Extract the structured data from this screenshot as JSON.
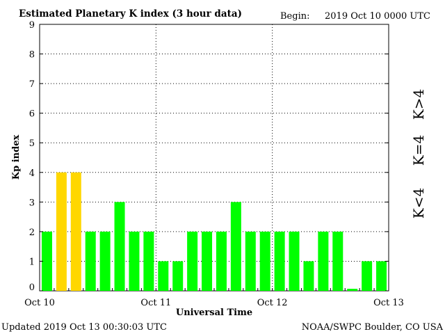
{
  "header": {
    "title": "Estimated Planetary K index (3 hour data)",
    "begin_label": "Begin:",
    "begin_value": "2019 Oct 10 0000 UTC"
  },
  "footer": {
    "updated": "Updated 2019 Oct 13 00:30:03 UTC",
    "source": "NOAA/SWPC Boulder, CO USA"
  },
  "legend": {
    "high": "K>4",
    "equal": "K=4",
    "low": "K<4"
  },
  "colors": {
    "low": "#00ff00",
    "equal": "#ffd700",
    "high": "#ff2a00"
  },
  "chart_data": {
    "type": "bar",
    "ylabel": "Kp index",
    "xlabel": "Universal Time",
    "ylim": [
      0,
      9
    ],
    "yticks": [
      "0",
      "1",
      "2",
      "3",
      "4",
      "5",
      "6",
      "7",
      "8",
      "9"
    ],
    "xtick_labels": [
      "Oct 10",
      "Oct 11",
      "Oct 12",
      "Oct 13"
    ],
    "grid": "dotted",
    "bars_per_day": 8,
    "values": [
      2,
      4,
      4,
      2,
      2,
      3,
      2,
      2,
      1,
      1,
      2,
      2,
      2,
      3,
      2,
      2,
      2,
      2,
      1,
      2,
      2,
      0.07,
      1,
      1
    ]
  }
}
